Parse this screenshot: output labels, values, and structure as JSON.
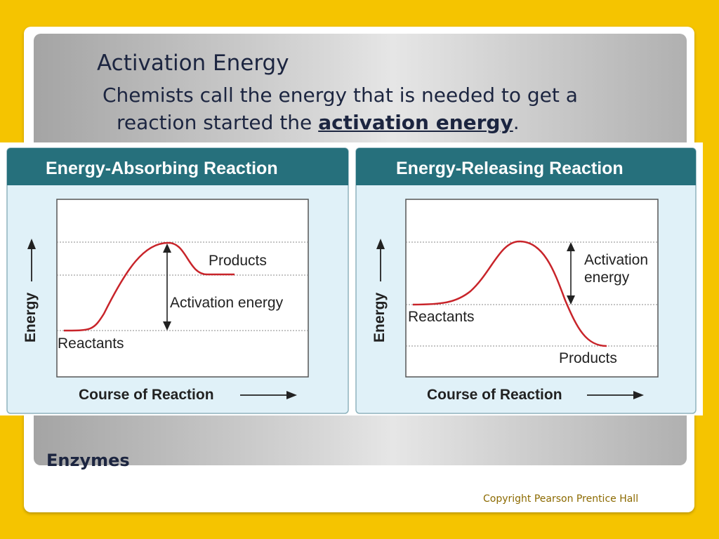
{
  "slide": {
    "title": "Activation Energy",
    "subtitle_line1": "Chemists call the energy that is needed to get a",
    "subtitle_line2_prefix": "reaction started the ",
    "subtitle_term": "activation energy",
    "subtitle_line2_suffix": ".",
    "footer_title": "Enzymes",
    "copyright": "Copyright Pearson Prentice Hall"
  },
  "colors": {
    "background": "#f5c400",
    "card_header": "#26707c",
    "card_body": "#e0f1f8",
    "curve": "#c8242a"
  },
  "diagrams": [
    {
      "title": "Energy-Absorbing Reaction",
      "y_axis_label": "Energy",
      "x_axis_label": "Course of Reaction",
      "labels": {
        "start": "Reactants",
        "end": "Products",
        "activation": "Activation energy"
      }
    },
    {
      "title": "Energy-Releasing Reaction",
      "y_axis_label": "Energy",
      "x_axis_label": "Course of Reaction",
      "labels": {
        "start": "Reactants",
        "end": "Products",
        "activation_line1": "Activation",
        "activation_line2": "energy"
      }
    }
  ]
}
